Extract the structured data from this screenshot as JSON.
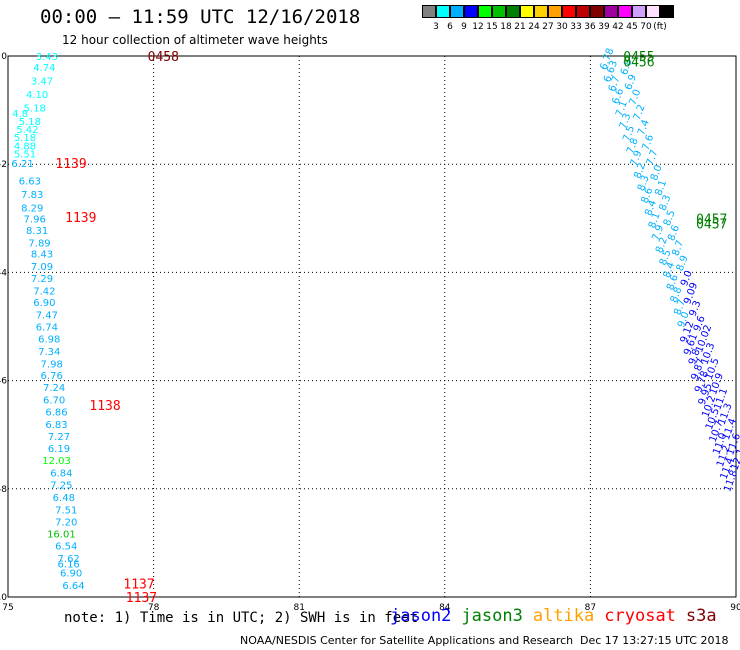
{
  "header": {
    "title": "00:00 – 11:59 UTC 12/16/2018",
    "subtitle": "12 hour collection of altimeter wave heights"
  },
  "scale": {
    "colors": [
      "#808080",
      "#00ffff",
      "#00b0ff",
      "#0000ff",
      "#00ff00",
      "#00c000",
      "#008000",
      "#ffff00",
      "#ffd000",
      "#ffa000",
      "#ff0000",
      "#c00000",
      "#800000",
      "#a000a0",
      "#ff00ff",
      "#d0a0ff",
      "#ffe0ff",
      "#000000"
    ],
    "labels": [
      "3",
      "6",
      "9",
      "12",
      "15",
      "18",
      "21",
      "24",
      "27",
      "30",
      "33",
      "36",
      "39",
      "42",
      "45",
      "70",
      "(ft)"
    ]
  },
  "notes": {
    "text": "note: 1) Time is in UTC; 2) SWH is in feet",
    "legend": [
      {
        "label": "jason2",
        "color": "#0000ff"
      },
      {
        "label": "jason3",
        "color": "#008000"
      },
      {
        "label": "altika",
        "color": "#ffa000"
      },
      {
        "label": "cryosat",
        "color": "#ff0000"
      },
      {
        "label": "s3a",
        "color": "#800000"
      }
    ],
    "credit": "NOAA/NESDIS Center for Satellite Applications and Research",
    "timestamp": "Dec 17 13:27:15 UTC 2018"
  },
  "chart_data": {
    "type": "scatter",
    "xlim": [
      75,
      90
    ],
    "ylim": [
      -10,
      0
    ],
    "x_ticks": [
      75,
      78,
      81,
      84,
      87,
      90
    ],
    "y_ticks": [
      0,
      -2,
      -4,
      -6,
      -8,
      -10
    ],
    "grid": true,
    "time_labels": [
      {
        "text": "0458",
        "x": 78.2,
        "y": 0.0,
        "color": "#800000"
      },
      {
        "text": "1139",
        "x": 76.3,
        "y": -1.98,
        "color": "#ff0000"
      },
      {
        "text": "1139",
        "x": 76.5,
        "y": -2.98,
        "color": "#ff0000"
      },
      {
        "text": "1138",
        "x": 77.0,
        "y": -6.45,
        "color": "#ff0000"
      },
      {
        "text": "1137",
        "x": 77.7,
        "y": -9.75,
        "color": "#ff0000"
      },
      {
        "text": "1137",
        "x": 77.75,
        "y": -10.0,
        "color": "#ff0000"
      },
      {
        "text": "0455",
        "x": 88.0,
        "y": 0.0,
        "color": "#008000"
      },
      {
        "text": "0456",
        "x": 88.0,
        "y": -0.1,
        "color": "#008000"
      },
      {
        "text": "0457",
        "x": 89.5,
        "y": -3.0,
        "color": "#008000"
      },
      {
        "text": "0457",
        "x": 89.5,
        "y": -3.1,
        "color": "#008000"
      }
    ],
    "swh_points": [
      {
        "v": "3.43",
        "x": 75.8,
        "y": 0.0,
        "c": "#00ffff"
      },
      {
        "v": "4.74",
        "x": 75.75,
        "y": -0.2,
        "c": "#00ffff"
      },
      {
        "v": "3.47",
        "x": 75.7,
        "y": -0.45,
        "c": "#00ffff"
      },
      {
        "v": "4.10",
        "x": 75.6,
        "y": -0.7,
        "c": "#00ffff"
      },
      {
        "v": "4.8",
        "x": 75.25,
        "y": -1.05,
        "c": "#00ffff"
      },
      {
        "v": "5.18",
        "x": 75.55,
        "y": -0.95,
        "c": "#00ffff"
      },
      {
        "v": "5.18",
        "x": 75.45,
        "y": -1.2,
        "c": "#00ffff"
      },
      {
        "v": "5.42",
        "x": 75.4,
        "y": -1.35,
        "c": "#00ffff"
      },
      {
        "v": "5.18",
        "x": 75.35,
        "y": -1.5,
        "c": "#00ffff"
      },
      {
        "v": "4.88",
        "x": 75.35,
        "y": -1.65,
        "c": "#00ffff"
      },
      {
        "v": "5.51",
        "x": 75.35,
        "y": -1.8,
        "c": "#00ffff"
      },
      {
        "v": "6.21",
        "x": 75.3,
        "y": -1.98,
        "c": "#00b0ff"
      },
      {
        "v": "6.63",
        "x": 75.45,
        "y": -2.3,
        "c": "#00b0ff"
      },
      {
        "v": "7.83",
        "x": 75.5,
        "y": -2.55,
        "c": "#00b0ff"
      },
      {
        "v": "8.29",
        "x": 75.5,
        "y": -2.8,
        "c": "#00b0ff"
      },
      {
        "v": "7.96",
        "x": 75.55,
        "y": -3.0,
        "c": "#00b0ff"
      },
      {
        "v": "8.31",
        "x": 75.6,
        "y": -3.22,
        "c": "#00b0ff"
      },
      {
        "v": "7.89",
        "x": 75.65,
        "y": -3.45,
        "c": "#00b0ff"
      },
      {
        "v": "8.43",
        "x": 75.7,
        "y": -3.65,
        "c": "#00b0ff"
      },
      {
        "v": "7.09",
        "x": 75.7,
        "y": -3.88,
        "c": "#00b0ff"
      },
      {
        "v": "7.29",
        "x": 75.7,
        "y": -4.1,
        "c": "#00b0ff"
      },
      {
        "v": "7.42",
        "x": 75.75,
        "y": -4.33,
        "c": "#00b0ff"
      },
      {
        "v": "6.90",
        "x": 75.75,
        "y": -4.55,
        "c": "#00b0ff"
      },
      {
        "v": "7.47",
        "x": 75.8,
        "y": -4.78,
        "c": "#00b0ff"
      },
      {
        "v": "6.74",
        "x": 75.8,
        "y": -5.0,
        "c": "#00b0ff"
      },
      {
        "v": "6.98",
        "x": 75.85,
        "y": -5.22,
        "c": "#00b0ff"
      },
      {
        "v": "7.34",
        "x": 75.85,
        "y": -5.45,
        "c": "#00b0ff"
      },
      {
        "v": "7.98",
        "x": 75.9,
        "y": -5.68,
        "c": "#00b0ff"
      },
      {
        "v": "6.76",
        "x": 75.9,
        "y": -5.9,
        "c": "#00b0ff"
      },
      {
        "v": "7.24",
        "x": 75.95,
        "y": -6.12,
        "c": "#00b0ff"
      },
      {
        "v": "6.70",
        "x": 75.95,
        "y": -6.35,
        "c": "#00b0ff"
      },
      {
        "v": "6.86",
        "x": 76.0,
        "y": -6.57,
        "c": "#00b0ff"
      },
      {
        "v": "6.83",
        "x": 76.0,
        "y": -6.8,
        "c": "#00b0ff"
      },
      {
        "v": "7.27",
        "x": 76.05,
        "y": -7.02,
        "c": "#00b0ff"
      },
      {
        "v": "6.19",
        "x": 76.05,
        "y": -7.25,
        "c": "#00b0ff"
      },
      {
        "v": "12.03",
        "x": 76.0,
        "y": -7.47,
        "c": "#00ff00"
      },
      {
        "v": "6.84",
        "x": 76.1,
        "y": -7.7,
        "c": "#00b0ff"
      },
      {
        "v": "7.25",
        "x": 76.1,
        "y": -7.92,
        "c": "#00b0ff"
      },
      {
        "v": "6.48",
        "x": 76.15,
        "y": -8.15,
        "c": "#00b0ff"
      },
      {
        "v": "7.51",
        "x": 76.2,
        "y": -8.38,
        "c": "#00b0ff"
      },
      {
        "v": "7.20",
        "x": 76.2,
        "y": -8.6,
        "c": "#00b0ff"
      },
      {
        "v": "16.01",
        "x": 76.1,
        "y": -8.83,
        "c": "#00c000"
      },
      {
        "v": "6.54",
        "x": 76.2,
        "y": -9.05,
        "c": "#00b0ff"
      },
      {
        "v": "7.62",
        "x": 76.25,
        "y": -9.28,
        "c": "#00b0ff"
      },
      {
        "v": "6.16",
        "x": 76.25,
        "y": -9.38,
        "c": "#00b0ff"
      },
      {
        "v": "6.90",
        "x": 76.3,
        "y": -9.55,
        "c": "#00b0ff"
      },
      {
        "v": "6.64",
        "x": 76.35,
        "y": -9.78,
        "c": "#00b0ff"
      }
    ],
    "track_a": {
      "values": [
        "6.78",
        "6.63",
        "6.7",
        "6.6",
        "7.1",
        "7.3",
        "7.5",
        "7.8",
        "7.9",
        "8.2",
        "8.3",
        "8.6",
        "8.4",
        "8.1",
        "7.9",
        "8.2",
        "8.5",
        "8.4",
        "8.6",
        "8.8",
        "8.7",
        "9.0",
        "9.12",
        "9.61",
        "9.8",
        "9.87",
        "9.78",
        "9.95",
        "10.2",
        "10.5",
        "10.7",
        "11.0",
        "11.2",
        "11.4",
        "11.8"
      ],
      "x_start": 87.4,
      "y_start": 0.0,
      "x_end": 89.95,
      "y_end": -7.8,
      "colors": [
        "#00b0ff",
        "#00b0ff",
        "#00b0ff",
        "#00b0ff",
        "#00b0ff",
        "#00b0ff",
        "#00b0ff",
        "#00b0ff",
        "#00b0ff",
        "#00b0ff",
        "#00b0ff",
        "#00b0ff",
        "#00b0ff",
        "#00b0ff",
        "#00b0ff",
        "#00b0ff",
        "#00b0ff",
        "#00b0ff",
        "#00b0ff",
        "#00b0ff",
        "#00b0ff",
        "#00b0ff",
        "#0000ff",
        "#0000ff",
        "#0000ff",
        "#0000ff",
        "#0000ff",
        "#0000ff",
        "#0000ff",
        "#0000ff",
        "#0000ff",
        "#0000ff",
        "#0000ff",
        "#0000ff",
        "#0000ff"
      ]
    },
    "track_b": {
      "values": [
        "6.8",
        "6.9",
        "7.0",
        "7.2",
        "7.4",
        "7.6",
        "7.7",
        "8.0",
        "8.1",
        "8.3",
        "8.5",
        "8.6",
        "8.7",
        "8.9",
        "9.0",
        "9.09",
        "9.3",
        "9.6",
        "10.02",
        "10.3",
        "10.5",
        "10.9",
        "11.1",
        "11.3",
        "11.4",
        "11.6",
        "12.1"
      ],
      "x_start": 87.8,
      "y_start": -0.15,
      "x_end": 90.1,
      "y_end": -7.4,
      "colors": [
        "#00b0ff",
        "#00b0ff",
        "#00b0ff",
        "#00b0ff",
        "#00b0ff",
        "#00b0ff",
        "#00b0ff",
        "#00b0ff",
        "#00b0ff",
        "#00b0ff",
        "#00b0ff",
        "#00b0ff",
        "#00b0ff",
        "#00b0ff",
        "#0000ff",
        "#0000ff",
        "#0000ff",
        "#0000ff",
        "#0000ff",
        "#0000ff",
        "#0000ff",
        "#0000ff",
        "#0000ff",
        "#0000ff",
        "#0000ff",
        "#0000ff",
        "#0000ff"
      ]
    }
  }
}
